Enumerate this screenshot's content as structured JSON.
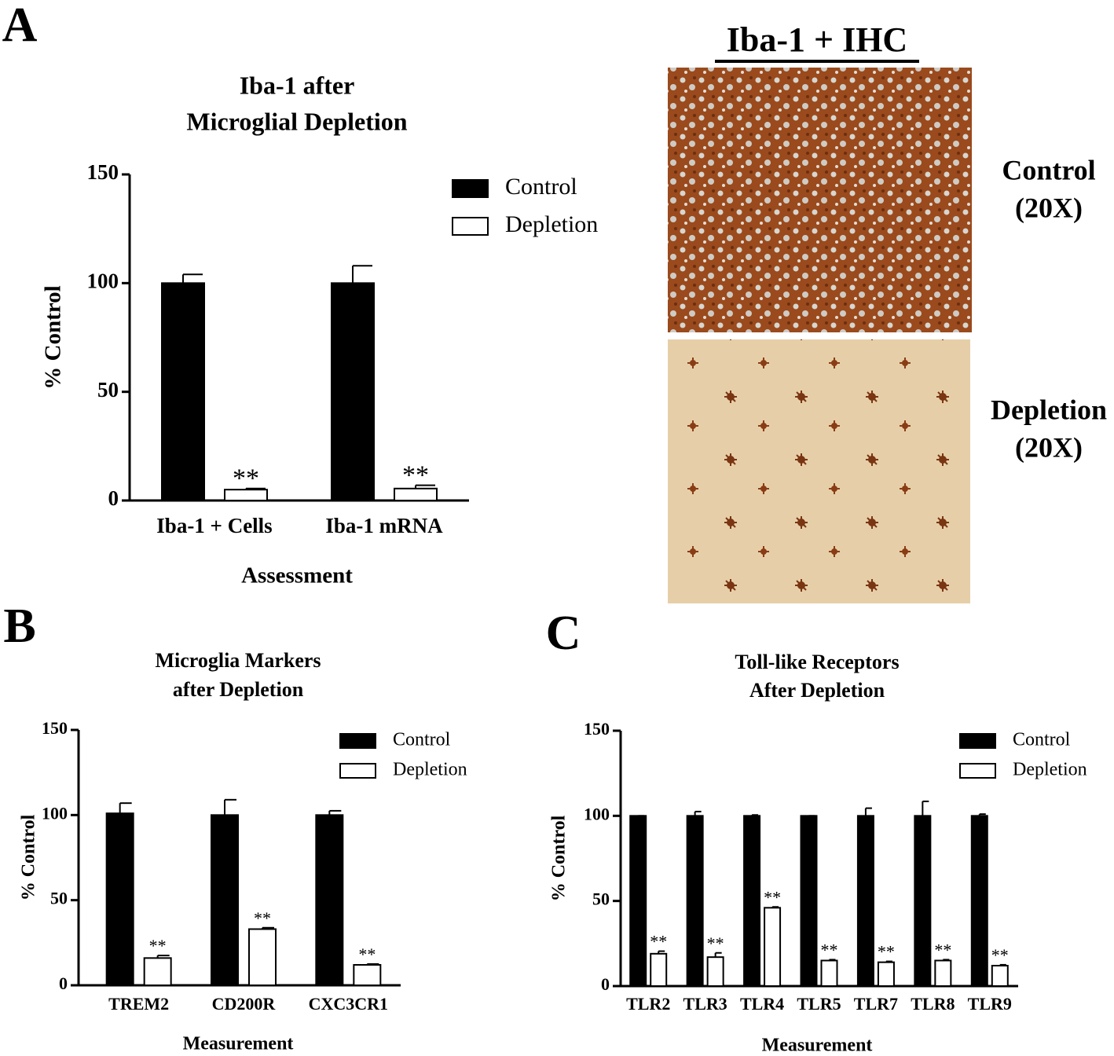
{
  "panel_labels": [
    "A",
    "B",
    "C"
  ],
  "ihc": {
    "title": "Iba-1 + IHC",
    "images": [
      {
        "label": [
          "Control",
          "(20X)"
        ]
      },
      {
        "label": [
          "Depletion",
          "(20X)"
        ]
      }
    ]
  },
  "chart_data": [
    {
      "type": "bar",
      "title": [
        "Iba-1 after",
        "Microglial Depletion"
      ],
      "x_label": "Assessment",
      "y_label": "% Control",
      "categories": [
        "Iba-1 + Cells",
        "Iba-1 mRNA"
      ],
      "series": [
        {
          "name": "Control",
          "color": "#000000",
          "values": [
            100,
            100
          ],
          "errors": [
            4,
            8
          ]
        },
        {
          "name": "Depletion",
          "color": "#ffffff",
          "values": [
            5,
            5.5
          ],
          "errors": [
            0.5,
            1.5
          ],
          "significance": [
            "**",
            "**"
          ]
        }
      ],
      "ylim": [
        0,
        150
      ],
      "yticks": [
        0,
        50,
        100,
        150
      ]
    },
    {
      "type": "bar",
      "title": [
        "Microglia Markers",
        "after Depletion"
      ],
      "x_label": "Measurement",
      "y_label": "% Control",
      "categories": [
        "TREM2",
        "CD200R",
        "CXC3CR1"
      ],
      "series": [
        {
          "name": "Control",
          "color": "#000000",
          "values": [
            101,
            100,
            100
          ],
          "errors": [
            6,
            9,
            2.5
          ]
        },
        {
          "name": "Depletion",
          "color": "#ffffff",
          "values": [
            16,
            33,
            12
          ],
          "errors": [
            1.5,
            0.8,
            0.5
          ],
          "significance": [
            "**",
            "**",
            "**"
          ]
        }
      ],
      "ylim": [
        0,
        150
      ],
      "yticks": [
        0,
        50,
        100,
        150
      ]
    },
    {
      "type": "bar",
      "title": [
        "Toll-like Receptors",
        "After Depletion"
      ],
      "x_label": "Measurement",
      "y_label": "% Control",
      "categories": [
        "TLR2",
        "TLR3",
        "TLR4",
        "TLR5",
        "TLR7",
        "TLR8",
        "TLR9"
      ],
      "series": [
        {
          "name": "Control",
          "color": "#000000",
          "values": [
            100,
            100,
            100,
            100,
            100,
            100,
            100
          ],
          "errors": [
            0,
            2.5,
            0.5,
            0,
            4.5,
            8.5,
            1
          ]
        },
        {
          "name": "Depletion",
          "color": "#ffffff",
          "values": [
            19,
            17,
            46,
            15,
            14,
            15,
            12
          ],
          "errors": [
            1.5,
            2.5,
            0.5,
            0.5,
            0.5,
            0.5,
            0.5
          ],
          "significance": [
            "**",
            "**",
            "**",
            "**",
            "**",
            "**",
            "**"
          ]
        }
      ],
      "ylim": [
        0,
        150
      ],
      "yticks": [
        0,
        50,
        100,
        150
      ]
    }
  ]
}
